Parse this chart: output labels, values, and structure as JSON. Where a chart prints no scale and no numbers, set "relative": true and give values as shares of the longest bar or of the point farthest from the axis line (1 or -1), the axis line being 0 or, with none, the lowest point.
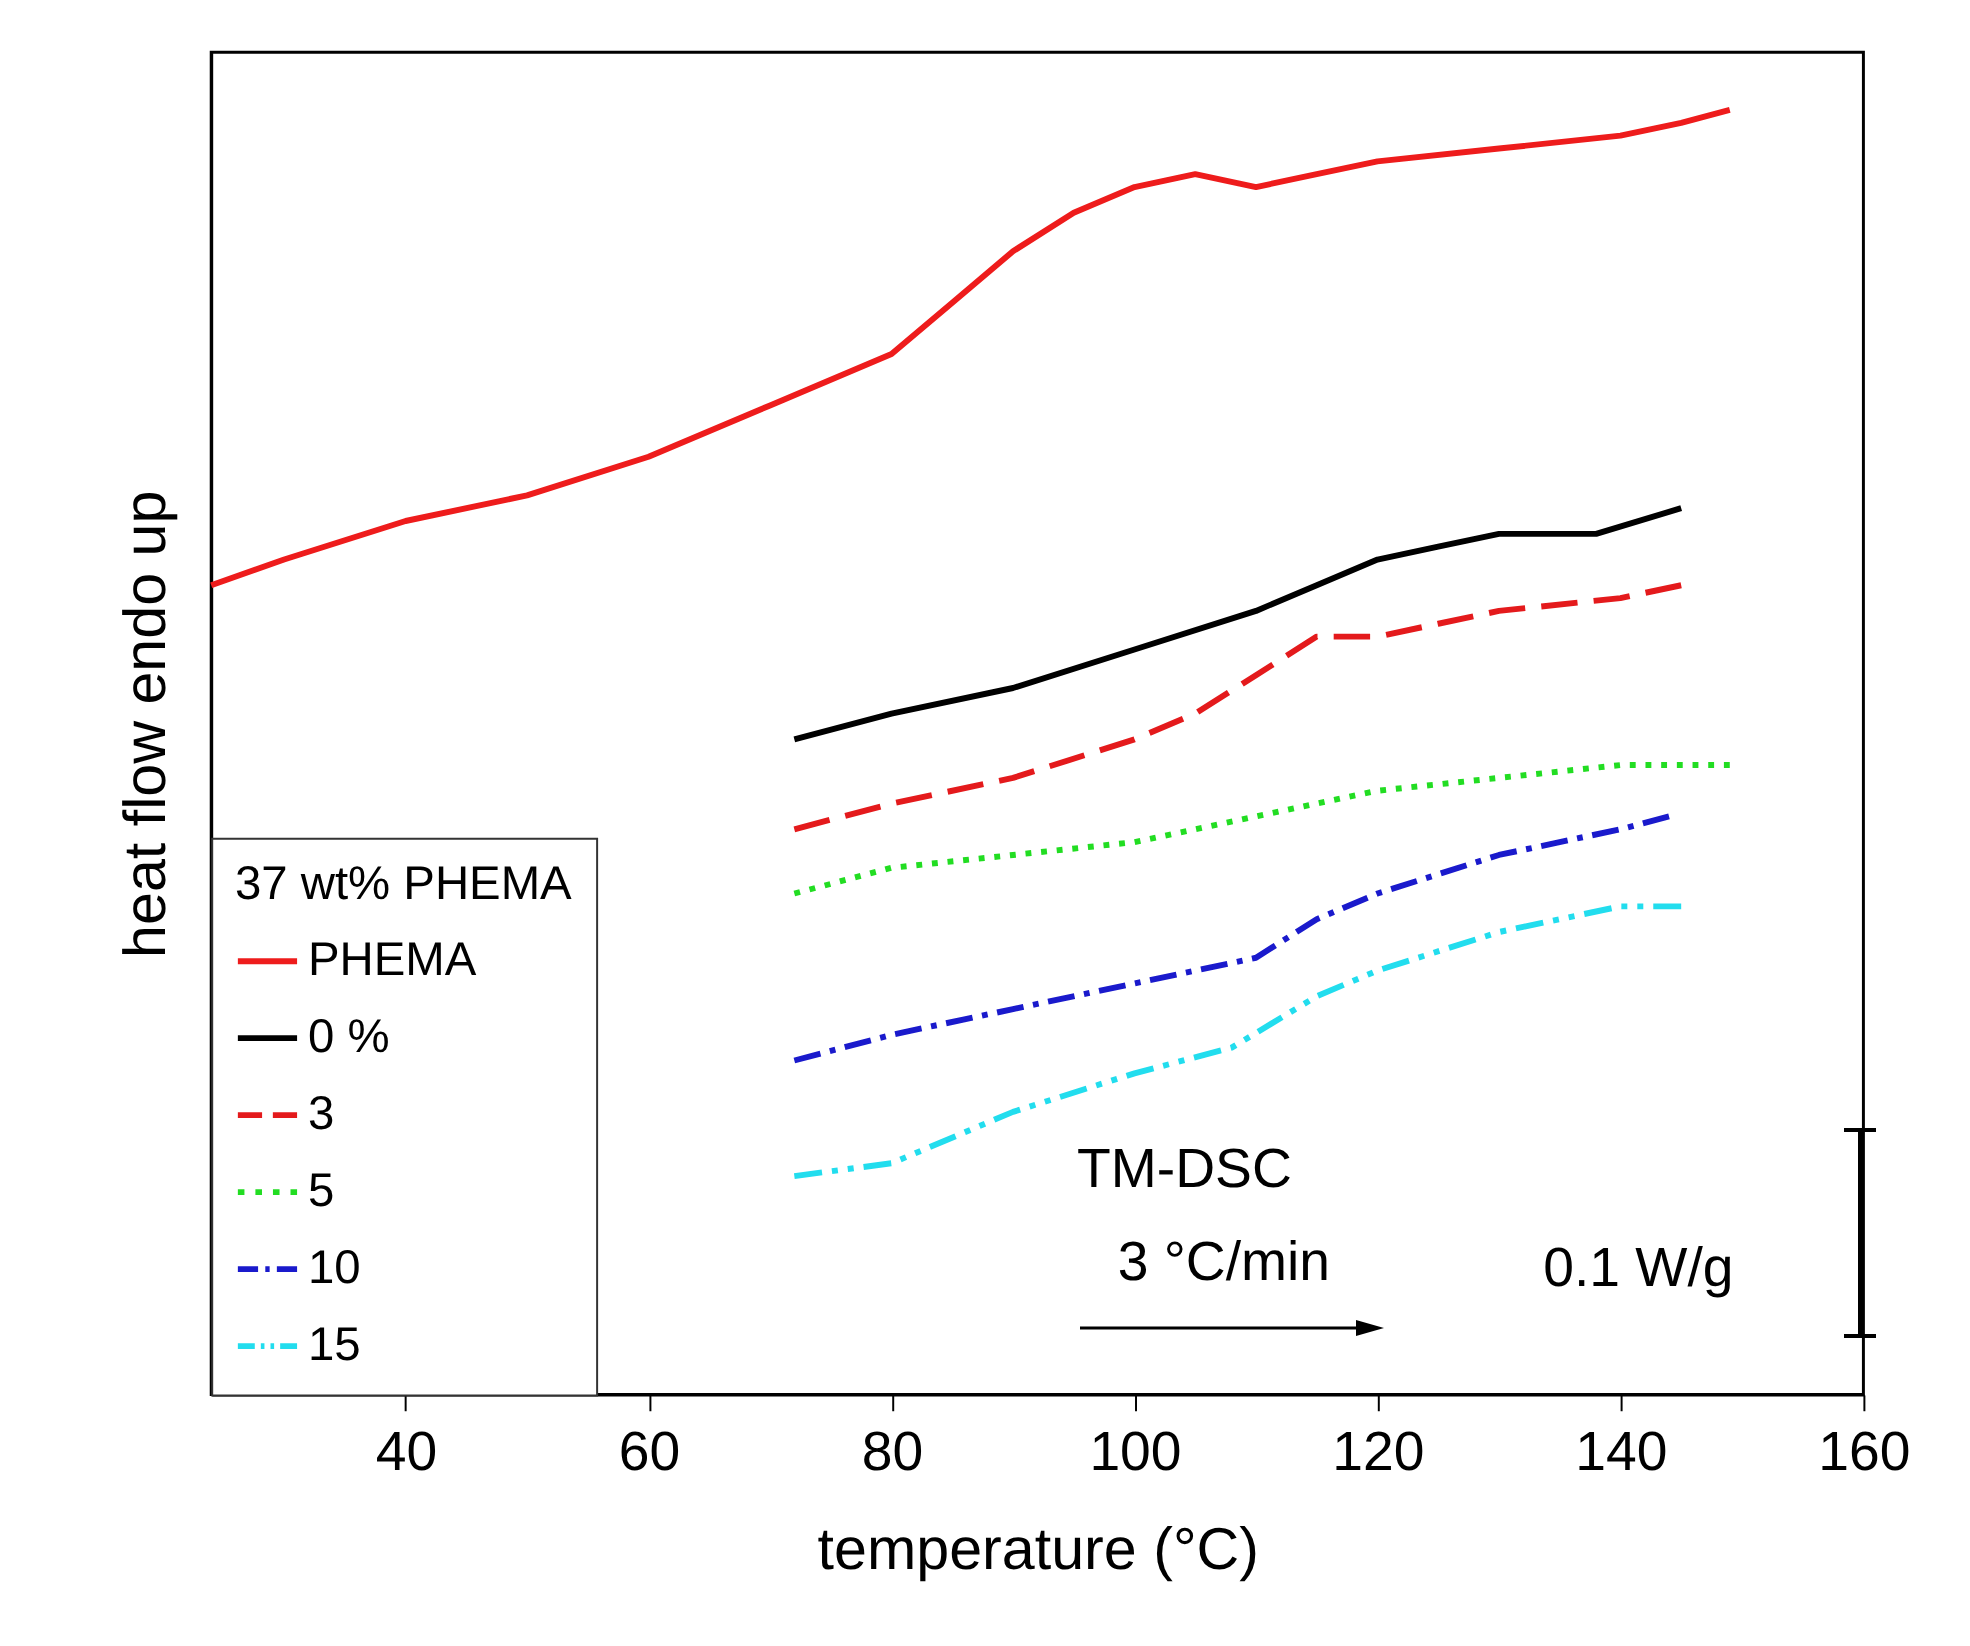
{
  "chart_data": {
    "type": "line",
    "relative": true,
    "xlabel": "temperature (°C)",
    "ylabel": "heat flow endo up",
    "legend_title": "37 wt% PHEMA",
    "legend": "bottom left",
    "xlim": [
      24,
      160
    ],
    "xticks": [
      40,
      60,
      80,
      100,
      120,
      140,
      160
    ],
    "grid": false,
    "series": [
      {
        "name": "PHEMA",
        "color": "#ee1c1c",
        "line_style": "solid",
        "x": [
          24,
          30,
          40,
          50,
          60,
          70,
          80,
          85,
          90,
          95,
          100,
          105,
          110,
          115,
          120,
          130,
          140,
          145,
          149
        ],
        "values": [
          0.63,
          0.65,
          0.68,
          0.7,
          0.73,
          0.77,
          0.81,
          0.85,
          0.89,
          0.92,
          0.94,
          0.95,
          0.94,
          0.95,
          0.96,
          0.97,
          0.98,
          0.99,
          1.0
        ]
      },
      {
        "name": "0 %",
        "color": "#000000",
        "line_style": "solid",
        "x": [
          72,
          80,
          90,
          100,
          110,
          115,
          120,
          125,
          130,
          138,
          145
        ],
        "values": [
          0.51,
          0.53,
          0.55,
          0.58,
          0.61,
          0.63,
          0.65,
          0.66,
          0.67,
          0.67,
          0.69
        ]
      },
      {
        "name": "3",
        "color": "#e41a1c",
        "line_style": "dashed",
        "x": [
          72,
          80,
          90,
          100,
          105,
          110,
          115,
          120,
          125,
          130,
          140,
          145
        ],
        "values": [
          0.44,
          0.46,
          0.48,
          0.51,
          0.53,
          0.56,
          0.59,
          0.59,
          0.6,
          0.61,
          0.62,
          0.63
        ]
      },
      {
        "name": "5",
        "color": "#22dd22",
        "line_style": "dotted",
        "x": [
          72,
          80,
          90,
          100,
          110,
          120,
          130,
          140,
          149
        ],
        "values": [
          0.39,
          0.41,
          0.42,
          0.43,
          0.45,
          0.47,
          0.48,
          0.49,
          0.49
        ]
      },
      {
        "name": "10",
        "color": "#1a1acc",
        "line_style": "dashdot",
        "x": [
          72,
          80,
          90,
          100,
          110,
          115,
          120,
          130,
          140,
          144
        ],
        "values": [
          0.26,
          0.28,
          0.3,
          0.32,
          0.34,
          0.37,
          0.39,
          0.42,
          0.44,
          0.45
        ]
      },
      {
        "name": "15",
        "color": "#22ddee",
        "line_style": "dashdotdot",
        "x": [
          72,
          80,
          90,
          100,
          108,
          115,
          120,
          130,
          140,
          145
        ],
        "values": [
          0.17,
          0.18,
          0.22,
          0.25,
          0.27,
          0.31,
          0.33,
          0.36,
          0.38,
          0.38
        ]
      }
    ],
    "annotations": [
      "TM-DSC",
      "3 °C/min",
      "0.1 W/g"
    ]
  }
}
